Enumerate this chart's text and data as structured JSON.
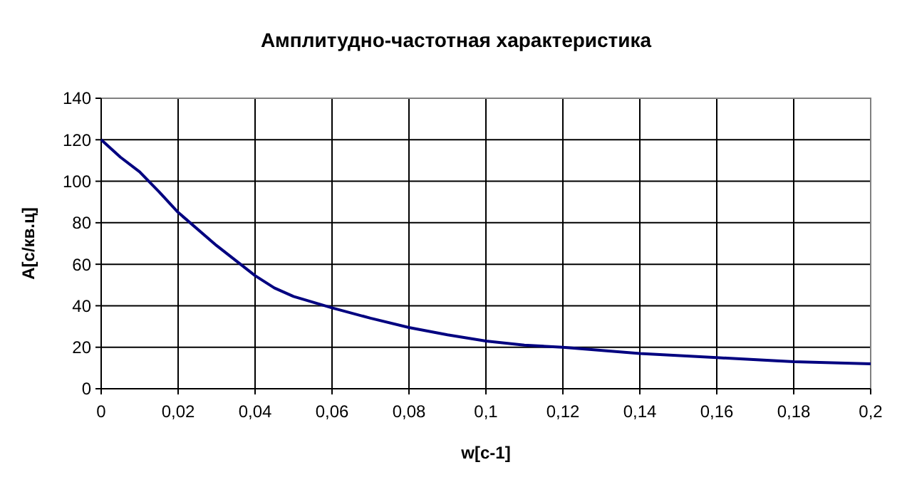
{
  "chart_data": {
    "type": "line",
    "title": "Амплитудно-частотная характеристика",
    "xlabel": "w[c-1]",
    "ylabel": "A[c/кв.ц]",
    "series": [
      {
        "color": "#000080",
        "x": [
          0,
          0.005,
          0.01,
          0.015,
          0.02,
          0.03,
          0.04,
          0.045,
          0.05,
          0.06,
          0.07,
          0.08,
          0.09,
          0.1,
          0.11,
          0.12,
          0.14,
          0.16,
          0.18,
          0.2
        ],
        "values": [
          120,
          111.6,
          104.5,
          95,
          85,
          69,
          54.5,
          48.6,
          44.5,
          39,
          34,
          29.5,
          26,
          23,
          21,
          20,
          17,
          15,
          13,
          12
        ]
      }
    ],
    "xlim": [
      0,
      0.2
    ],
    "xticks": [
      0,
      {
        "value": 0.02,
        "label": "0,02"
      },
      {
        "value": 0.04,
        "label": "0,04"
      },
      {
        "value": 0.06,
        "label": "0,06"
      },
      {
        "value": 0.08,
        "label": "0,08"
      },
      {
        "value": 0.1,
        "label": "0,1"
      },
      {
        "value": 0.12,
        "label": "0,12"
      },
      {
        "value": 0.14,
        "label": "0,14"
      },
      {
        "value": 0.16,
        "label": "0,16"
      },
      {
        "value": 0.18,
        "label": "0,18"
      },
      {
        "value": 0.2,
        "label": "0,2"
      }
    ],
    "ylim": [
      0,
      140
    ],
    "yticks": [
      0,
      20,
      40,
      60,
      80,
      100,
      120,
      140
    ],
    "grid": true,
    "marker": "none",
    "line_style": "solid"
  }
}
